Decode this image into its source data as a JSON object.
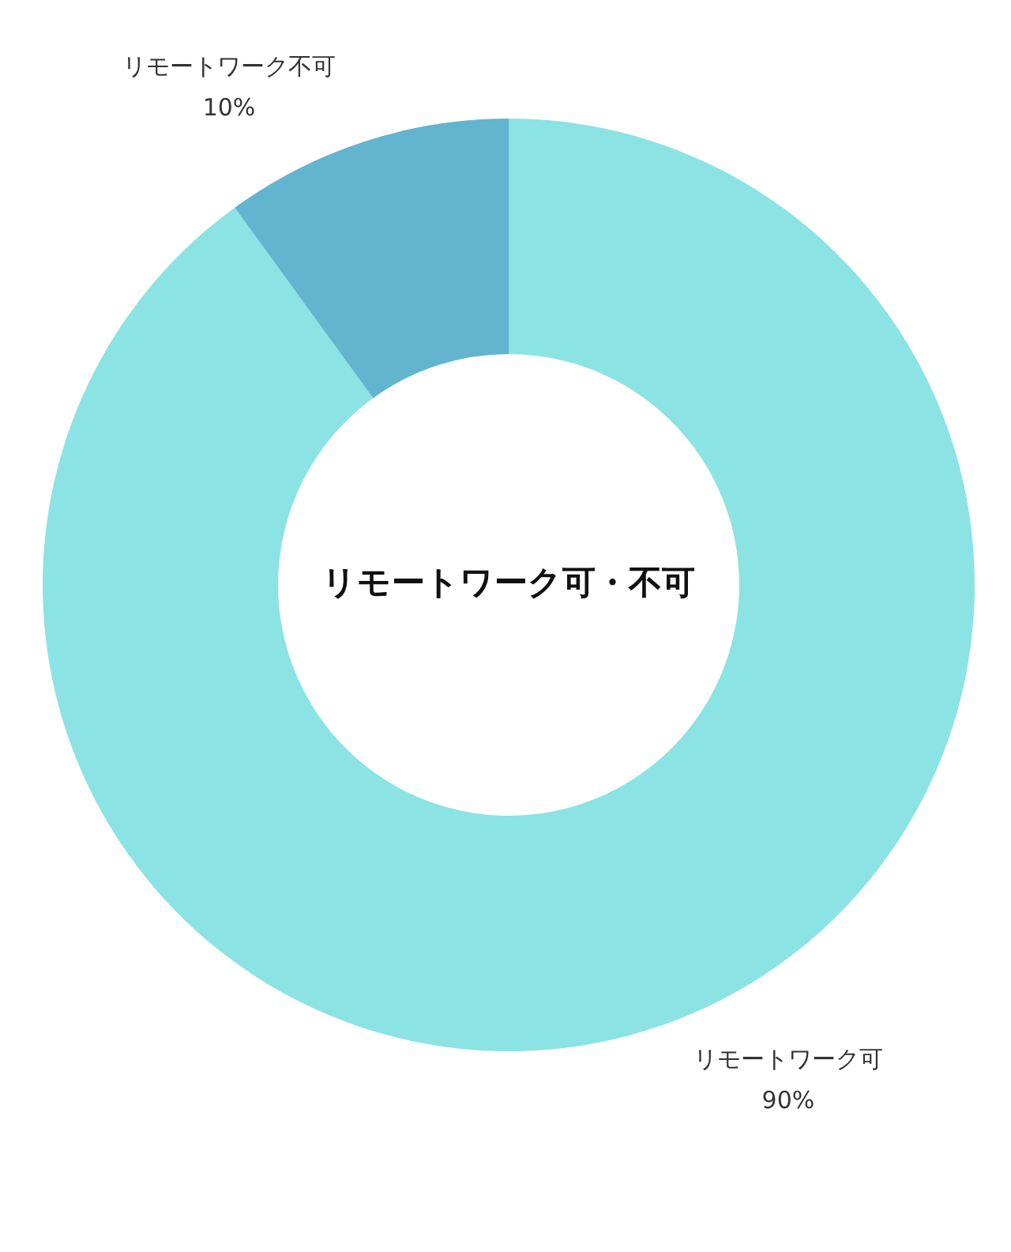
{
  "chart_data": {
    "type": "donut",
    "title": "リモートワーク可・不可",
    "categories": [
      "リモートワーク可",
      "リモートワーク不可"
    ],
    "values": [
      90,
      10
    ],
    "value_labels": [
      "90%",
      "10%"
    ],
    "colors": [
      "#8be3e4",
      "#63b4cf"
    ]
  }
}
